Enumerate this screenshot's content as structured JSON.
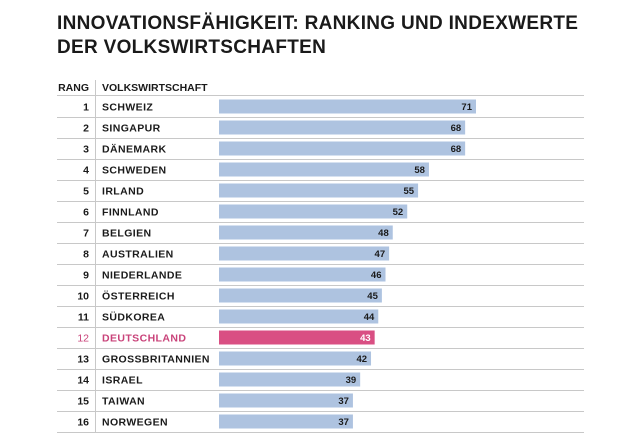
{
  "title_lines": [
    "INNOVATIONSFÄHIGKEIT: RANKING UND INDEXWERTE",
    "DER VOLKSWIRTSCHAFTEN"
  ],
  "header": {
    "rank": "RANG",
    "economy": "VOLKSWIRTSCHAFT"
  },
  "colors": {
    "bar": "#aec3e0",
    "highlight_bar": "#d94f83",
    "highlight_text": "#c9437a",
    "rank_text": "#1a1a1a",
    "grid": "#c8c8c8"
  },
  "chart_data": {
    "type": "bar",
    "orientation": "horizontal",
    "xlim": [
      0,
      71
    ],
    "highlight": "DEUTSCHLAND",
    "ranks": [
      "1",
      "2",
      "3",
      "4",
      "5",
      "6",
      "7",
      "8",
      "9",
      "10",
      "11",
      "12",
      "13",
      "14",
      "15",
      "16"
    ],
    "categories": [
      "SCHWEIZ",
      "SINGAPUR",
      "DÄNEMARK",
      "SCHWEDEN",
      "IRLAND",
      "FINNLAND",
      "BELGIEN",
      "AUSTRALIEN",
      "NIEDERLANDE",
      "ÖSTERREICH",
      "SÜDKOREA",
      "DEUTSCHLAND",
      "GROSSBRITANNIEN",
      "ISRAEL",
      "TAIWAN",
      "NORWEGEN"
    ],
    "values": [
      71,
      68,
      68,
      58,
      55,
      52,
      48,
      47,
      46,
      45,
      44,
      43,
      42,
      39,
      37,
      37
    ]
  }
}
